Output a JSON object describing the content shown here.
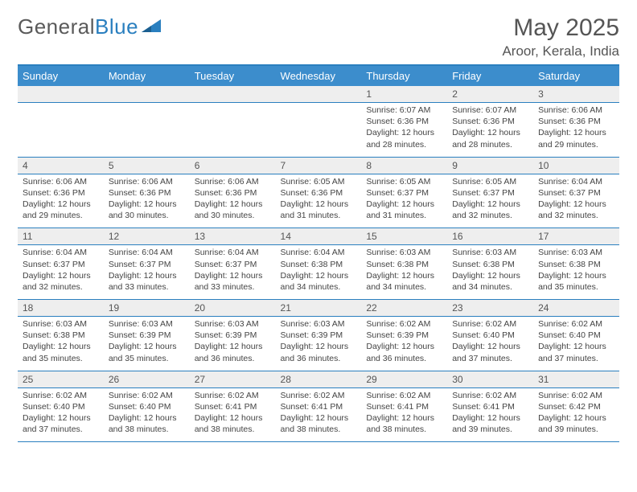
{
  "brand": {
    "name_a": "General",
    "name_b": "Blue"
  },
  "title": "May 2025",
  "location": "Aroor, Kerala, India",
  "colors": {
    "header_bg": "#3c8dcc",
    "border": "#2a7fbf",
    "daynum_bg": "#eeeeee",
    "text": "#444444",
    "title_text": "#555555"
  },
  "weekdays": [
    "Sunday",
    "Monday",
    "Tuesday",
    "Wednesday",
    "Thursday",
    "Friday",
    "Saturday"
  ],
  "labels": {
    "sunrise": "Sunrise:",
    "sunset": "Sunset:",
    "daylight": "Daylight:"
  },
  "weeks": [
    [
      null,
      null,
      null,
      null,
      {
        "d": "1",
        "sr": "6:07 AM",
        "ss": "6:36 PM",
        "dl": "12 hours and 28 minutes."
      },
      {
        "d": "2",
        "sr": "6:07 AM",
        "ss": "6:36 PM",
        "dl": "12 hours and 28 minutes."
      },
      {
        "d": "3",
        "sr": "6:06 AM",
        "ss": "6:36 PM",
        "dl": "12 hours and 29 minutes."
      }
    ],
    [
      {
        "d": "4",
        "sr": "6:06 AM",
        "ss": "6:36 PM",
        "dl": "12 hours and 29 minutes."
      },
      {
        "d": "5",
        "sr": "6:06 AM",
        "ss": "6:36 PM",
        "dl": "12 hours and 30 minutes."
      },
      {
        "d": "6",
        "sr": "6:06 AM",
        "ss": "6:36 PM",
        "dl": "12 hours and 30 minutes."
      },
      {
        "d": "7",
        "sr": "6:05 AM",
        "ss": "6:36 PM",
        "dl": "12 hours and 31 minutes."
      },
      {
        "d": "8",
        "sr": "6:05 AM",
        "ss": "6:37 PM",
        "dl": "12 hours and 31 minutes."
      },
      {
        "d": "9",
        "sr": "6:05 AM",
        "ss": "6:37 PM",
        "dl": "12 hours and 32 minutes."
      },
      {
        "d": "10",
        "sr": "6:04 AM",
        "ss": "6:37 PM",
        "dl": "12 hours and 32 minutes."
      }
    ],
    [
      {
        "d": "11",
        "sr": "6:04 AM",
        "ss": "6:37 PM",
        "dl": "12 hours and 32 minutes."
      },
      {
        "d": "12",
        "sr": "6:04 AM",
        "ss": "6:37 PM",
        "dl": "12 hours and 33 minutes."
      },
      {
        "d": "13",
        "sr": "6:04 AM",
        "ss": "6:37 PM",
        "dl": "12 hours and 33 minutes."
      },
      {
        "d": "14",
        "sr": "6:04 AM",
        "ss": "6:38 PM",
        "dl": "12 hours and 34 minutes."
      },
      {
        "d": "15",
        "sr": "6:03 AM",
        "ss": "6:38 PM",
        "dl": "12 hours and 34 minutes."
      },
      {
        "d": "16",
        "sr": "6:03 AM",
        "ss": "6:38 PM",
        "dl": "12 hours and 34 minutes."
      },
      {
        "d": "17",
        "sr": "6:03 AM",
        "ss": "6:38 PM",
        "dl": "12 hours and 35 minutes."
      }
    ],
    [
      {
        "d": "18",
        "sr": "6:03 AM",
        "ss": "6:38 PM",
        "dl": "12 hours and 35 minutes."
      },
      {
        "d": "19",
        "sr": "6:03 AM",
        "ss": "6:39 PM",
        "dl": "12 hours and 35 minutes."
      },
      {
        "d": "20",
        "sr": "6:03 AM",
        "ss": "6:39 PM",
        "dl": "12 hours and 36 minutes."
      },
      {
        "d": "21",
        "sr": "6:03 AM",
        "ss": "6:39 PM",
        "dl": "12 hours and 36 minutes."
      },
      {
        "d": "22",
        "sr": "6:02 AM",
        "ss": "6:39 PM",
        "dl": "12 hours and 36 minutes."
      },
      {
        "d": "23",
        "sr": "6:02 AM",
        "ss": "6:40 PM",
        "dl": "12 hours and 37 minutes."
      },
      {
        "d": "24",
        "sr": "6:02 AM",
        "ss": "6:40 PM",
        "dl": "12 hours and 37 minutes."
      }
    ],
    [
      {
        "d": "25",
        "sr": "6:02 AM",
        "ss": "6:40 PM",
        "dl": "12 hours and 37 minutes."
      },
      {
        "d": "26",
        "sr": "6:02 AM",
        "ss": "6:40 PM",
        "dl": "12 hours and 38 minutes."
      },
      {
        "d": "27",
        "sr": "6:02 AM",
        "ss": "6:41 PM",
        "dl": "12 hours and 38 minutes."
      },
      {
        "d": "28",
        "sr": "6:02 AM",
        "ss": "6:41 PM",
        "dl": "12 hours and 38 minutes."
      },
      {
        "d": "29",
        "sr": "6:02 AM",
        "ss": "6:41 PM",
        "dl": "12 hours and 38 minutes."
      },
      {
        "d": "30",
        "sr": "6:02 AM",
        "ss": "6:41 PM",
        "dl": "12 hours and 39 minutes."
      },
      {
        "d": "31",
        "sr": "6:02 AM",
        "ss": "6:42 PM",
        "dl": "12 hours and 39 minutes."
      }
    ]
  ]
}
